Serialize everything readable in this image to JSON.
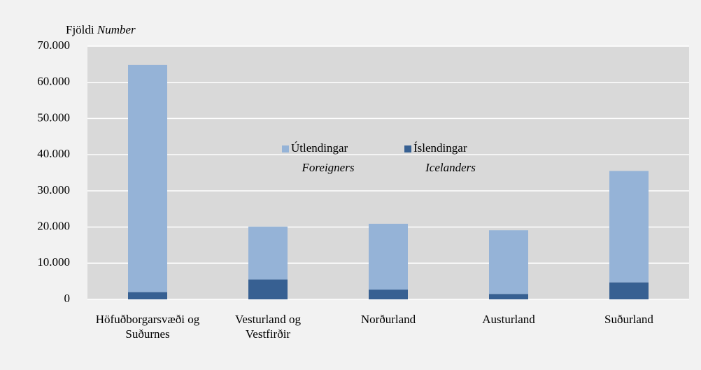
{
  "chart_data": {
    "type": "stacked_bar",
    "y_label": "Fjöldi",
    "y_label_en": "Number",
    "categories": [
      "Höfuðborgarsvæði og Suðurnes",
      "Vesturland og Vestfirðir",
      "Norðurland",
      "Austurland",
      "Suðurland"
    ],
    "series": [
      {
        "name": "Íslendingar",
        "name_en": "Icelanders",
        "color": "#376092",
        "values": [
          2000,
          5500,
          2700,
          1500,
          4700
        ]
      },
      {
        "name": "Útlendingar",
        "name_en": "Foreigners",
        "color": "#95b3d7",
        "values": [
          62800,
          14600,
          18200,
          17600,
          30800
        ]
      }
    ],
    "ylim": [
      0,
      70000
    ],
    "yticks": [
      0,
      {
        "value": 10000,
        "label": "10.000"
      },
      {
        "value": 20000,
        "label": "20.000"
      },
      {
        "value": 30000,
        "label": "30.000"
      },
      {
        "value": 40000,
        "label": "40.000"
      },
      {
        "value": 50000,
        "label": "50.000"
      },
      {
        "value": 60000,
        "label": "60.000"
      },
      {
        "value": 70000,
        "label": "70.000"
      }
    ],
    "grid": true,
    "legend": "center"
  }
}
